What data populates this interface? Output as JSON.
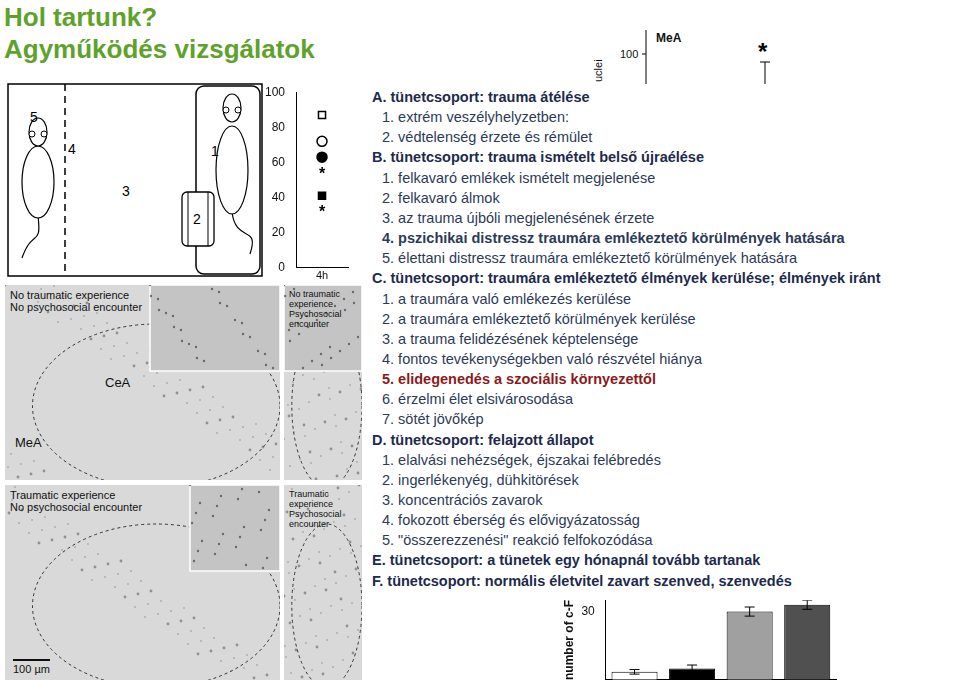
{
  "header": {
    "title": "Hol tartunk?",
    "subtitle": "Agyműködés vizsgálatok"
  },
  "apparatus": {
    "labels": [
      "5",
      "4",
      "3",
      "2",
      "1"
    ]
  },
  "chart_data": [
    {
      "type": "line",
      "categories": [
        "4h"
      ],
      "ylim": [
        0,
        100
      ],
      "yticks": [
        0,
        20,
        40,
        60,
        80,
        100
      ],
      "grid": false,
      "series": [
        {
          "marker": "open_square",
          "color": "#000000",
          "values": [
            87
          ]
        },
        {
          "marker": "open_circle",
          "color": "#000000",
          "values": [
            72
          ]
        },
        {
          "marker": "circle",
          "color": "#000000",
          "values": [
            63
          ]
        },
        {
          "marker": "square",
          "color": "#000000",
          "values": [
            41
          ]
        }
      ],
      "annotations": [
        {
          "text": "*",
          "series": 3
        },
        {
          "text": "*",
          "series": 2
        }
      ]
    },
    {
      "type": "bar",
      "y_label": "number of c-F",
      "categories": [
        null,
        null,
        null,
        null
      ],
      "values": [
        3.5,
        5,
        30,
        33
      ],
      "errors": [
        1,
        1.5,
        2,
        2
      ],
      "colors": [
        "#ffffff",
        "#000000",
        "#a0a0a0",
        "#505050"
      ],
      "ylim": [
        0,
        35
      ],
      "yticks": [
        30
      ],
      "grid": false,
      "tick_labels": "y"
    }
  ],
  "mea_fragment": {
    "y_label": "uclei",
    "title": "MeA",
    "ytick": "100",
    "annotation": "*"
  },
  "micrographs": {
    "panels": [
      {
        "lines": [
          "No traumatic experience",
          "No psychosocial encounter"
        ],
        "regions": [
          "CeA",
          "MeA"
        ]
      },
      {
        "lines": [
          "No traumatic experience",
          "Psychosocial encounter"
        ],
        "regions": []
      },
      {
        "lines": [
          "Traumatic experience",
          "No psychosocial encounter"
        ],
        "regions": []
      },
      {
        "lines": [
          "Traumatic experience",
          "Psychosocial encounter"
        ],
        "regions": []
      }
    ],
    "scale_bar": "100 µm"
  },
  "list": [
    {
      "text": "A. tünetcsoport: trauma átélése",
      "level": 0
    },
    {
      "text": "1. extrém veszélyhelyzetben:",
      "level": 1
    },
    {
      "text": "2. védtelenség érzete és rémület",
      "level": 1
    },
    {
      "text": "B. tünetcsoport: trauma ismételt belső újraélése",
      "level": 0
    },
    {
      "text": "1. felkavaró emlékek ismételt megjelenése",
      "level": 1
    },
    {
      "text": "2. felkavaró álmok",
      "level": 1
    },
    {
      "text": "3. az trauma újbóli megjelenésének érzete",
      "level": 1
    },
    {
      "text": "4. pszichikai distressz traumára emlékeztető körülmények hatására",
      "level": 1,
      "bold": true
    },
    {
      "text": "5. élettani distressz traumára emlékeztető körülmények hatására",
      "level": 1
    },
    {
      "text": "C. tünetcsoport: traumára emlékeztető élmények kerülése; élmények iránt",
      "level": 0
    },
    {
      "text": "1. a traumára való emlékezés kerülése",
      "level": 1
    },
    {
      "text": "2. a traumára emlékeztető körülmények kerülése",
      "level": 1
    },
    {
      "text": "3. a trauma felidézésének képtelensége",
      "level": 1
    },
    {
      "text": "4. fontos tevékenységekben való részvétel hiánya",
      "level": 1
    },
    {
      "text": "5. elidegenedés a szociális környezettől",
      "level": 1,
      "bold": true,
      "color": "#8b1a1a"
    },
    {
      "text": "6. érzelmi élet elsivárosodása",
      "level": 1
    },
    {
      "text": "7. sötét jövőkép",
      "level": 1
    },
    {
      "text": "D. tünetcsoport: felajzott állapot",
      "level": 0
    },
    {
      "text": "1. elalvási nehézségek, éjszakai felébredés",
      "level": 1
    },
    {
      "text": "2. ingerlékenyég, dühkitörések",
      "level": 1
    },
    {
      "text": "3. koncentrációs zavarok",
      "level": 1
    },
    {
      "text": "4. fokozott éberség és elővigyázatosság",
      "level": 1
    },
    {
      "text": "5. \"összerezzenési\" reakció felfokozódása",
      "level": 1
    },
    {
      "text": "E. tünetcsoport: a tünetek egy hónapnál tovább tartanak",
      "level": 0
    },
    {
      "text": "F. tünetcsoport: normális életvitel zavart szenved, szenvedés",
      "level": 0
    }
  ]
}
